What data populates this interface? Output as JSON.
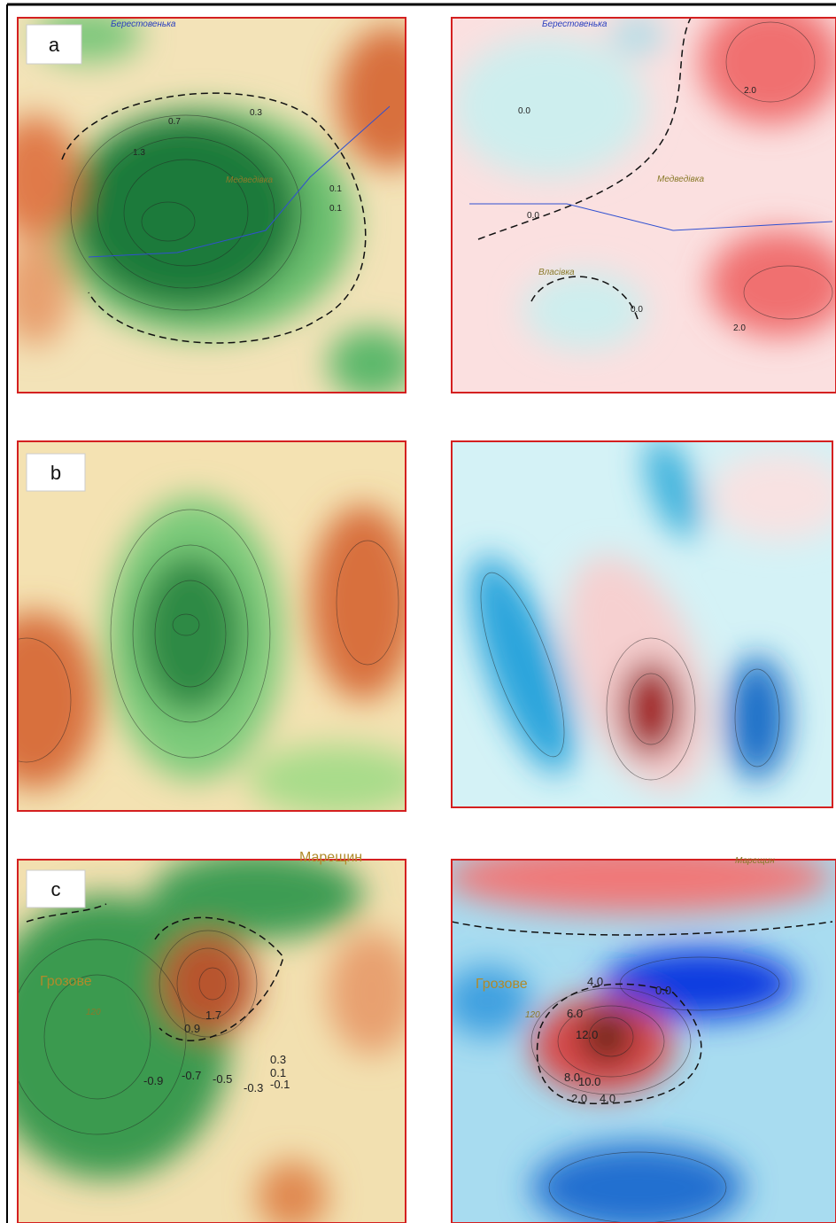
{
  "panel_labels": [
    "a",
    "b",
    "c"
  ],
  "map_1": {
    "places": [
      "Берестовенька",
      "Медведівка"
    ],
    "contour_labels": [
      "0.1",
      "0.1",
      "0.3",
      "0.7",
      "1.3"
    ]
  },
  "map_2": {
    "places": [
      "Берестовенька",
      "Медведівка",
      "Власівка"
    ],
    "contour_labels": [
      "0.0",
      "0.0",
      "2.0",
      "2.0",
      "0.0"
    ]
  },
  "map_5": {
    "places": [
      "Марещин",
      "Грозове",
      "120"
    ],
    "contour_labels": [
      "0.3",
      "0.1",
      "-0.1",
      "-0.9",
      "-0.7",
      "-0.5",
      "-0.3",
      "1.7",
      "0.9"
    ]
  },
  "map_6": {
    "places": [
      "Марещин",
      "Грозове",
      "120"
    ],
    "contour_labels": [
      "4.0",
      "0.0",
      "6.0",
      "12.0",
      "8.0",
      "10.0",
      "2.0",
      "4.0"
    ]
  }
}
